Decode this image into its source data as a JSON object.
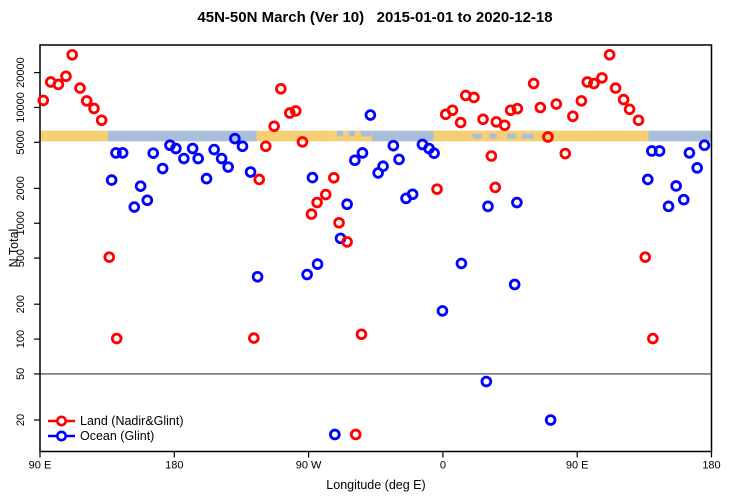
{
  "title": "45N-50N March (Ver 10)   2015-01-01 to 2020-12-18",
  "chart_data": {
    "type": "scatter",
    "title": "45N-50N March (Ver 10)   2015-01-01 to 2020-12-18",
    "xlabel": "Longitude (deg E)",
    "ylabel": "N Total",
    "x_axis": {
      "note": "longitude axis wraps eastward starting at 90E, spanning 450 degrees",
      "range_deg": [
        0,
        450
      ],
      "ticks": [
        {
          "pos": 0,
          "label": "90 E"
        },
        {
          "pos": 90,
          "label": "180"
        },
        {
          "pos": 180,
          "label": "90 W"
        },
        {
          "pos": 270,
          "label": "0"
        },
        {
          "pos": 360,
          "label": "90 E"
        },
        {
          "pos": 450,
          "label": "180"
        }
      ]
    },
    "y_axis": {
      "scale": "log",
      "range": [
        11,
        34000
      ],
      "ticks": [
        20,
        50,
        100,
        200,
        500,
        1000,
        2000,
        5000,
        10000,
        20000
      ]
    },
    "reference_line_n": 50,
    "coast_band": {
      "n_low": 5100,
      "n_high": 6300,
      "land_color": "#F6CE73",
      "ocean_color": "#A9BFD9",
      "segments": [
        {
          "type": "land",
          "from": 0,
          "to": 45.5
        },
        {
          "type": "ocean",
          "from": 45.5,
          "to": 145.3
        },
        {
          "type": "land",
          "from": 145.3,
          "to": 196.9
        },
        {
          "type": "mixed",
          "from": 196.9,
          "to": 222.3
        },
        {
          "type": "ocean",
          "from": 222.3,
          "to": 263.8
        },
        {
          "type": "land",
          "from": 263.8,
          "to": 407.8
        },
        {
          "type": "ocean",
          "from": 407.8,
          "to": 450
        }
      ],
      "mixed_ocean_chips": [
        {
          "from": 199,
          "to": 203
        },
        {
          "from": 207,
          "to": 211
        },
        {
          "from": 215,
          "to": 222
        }
      ],
      "inland_water_chips": [
        {
          "from": 290,
          "to": 296
        },
        {
          "from": 301,
          "to": 306
        },
        {
          "from": 313,
          "to": 319
        },
        {
          "from": 323,
          "to": 331
        }
      ]
    },
    "series": [
      {
        "name": "Land (Nadir&Glint)",
        "color": "#FF0000",
        "points": [
          [
            2.2,
            11500
          ],
          [
            7.2,
            16600
          ],
          [
            12.3,
            15800
          ],
          [
            17.4,
            18600
          ],
          [
            21.6,
            28500
          ],
          [
            26.8,
            14700
          ],
          [
            31.3,
            11400
          ],
          [
            36.2,
            9800
          ],
          [
            41.3,
            7750
          ],
          [
            46.4,
            510
          ],
          [
            51.4,
            101
          ],
          [
            143.3,
            102
          ],
          [
            146.9,
            2390
          ],
          [
            151.3,
            4620
          ],
          [
            156.9,
            6880
          ],
          [
            161.4,
            14500
          ],
          [
            167.4,
            8960
          ],
          [
            171.4,
            9330
          ],
          [
            175.9,
            5040
          ],
          [
            181.9,
            1200
          ],
          [
            185.7,
            1510
          ],
          [
            191.5,
            1770
          ],
          [
            196.9,
            2470
          ],
          [
            200.4,
            1010
          ],
          [
            205.8,
            690
          ],
          [
            211.6,
            15
          ],
          [
            215.4,
            110
          ],
          [
            266.1,
            1970
          ],
          [
            271.9,
            8730
          ],
          [
            276.4,
            9460
          ],
          [
            281.9,
            7400
          ],
          [
            285.3,
            12700
          ],
          [
            290.8,
            12200
          ],
          [
            296.9,
            7910
          ],
          [
            302.5,
            3810
          ],
          [
            305.1,
            2040
          ],
          [
            305.8,
            7500
          ],
          [
            311.4,
            7020
          ],
          [
            315.4,
            9460
          ],
          [
            319.9,
            9770
          ],
          [
            330.8,
            16100
          ],
          [
            335.3,
            9980
          ],
          [
            340.4,
            5560
          ],
          [
            346.0,
            10700
          ],
          [
            352.0,
            4000
          ],
          [
            357.1,
            8390
          ],
          [
            362.8,
            11400
          ],
          [
            366.8,
            16600
          ],
          [
            371.2,
            16100
          ],
          [
            376.6,
            18000
          ],
          [
            381.7,
            28500
          ],
          [
            385.7,
            14700
          ],
          [
            391.1,
            11700
          ],
          [
            395.1,
            9640
          ],
          [
            401.1,
            7750
          ],
          [
            405.6,
            510
          ],
          [
            410.7,
            101
          ]
        ]
      },
      {
        "name": "Ocean (Glint)",
        "color": "#0000FF",
        "points": [
          [
            48.0,
            2360
          ],
          [
            50.9,
            4050
          ],
          [
            55.4,
            4050
          ],
          [
            63.2,
            1380
          ],
          [
            67.4,
            2090
          ],
          [
            71.9,
            1580
          ],
          [
            75.9,
            4030
          ],
          [
            82.2,
            2970
          ],
          [
            87.1,
            4720
          ],
          [
            91.1,
            4420
          ],
          [
            96.4,
            3620
          ],
          [
            102.3,
            4420
          ],
          [
            106.0,
            3620
          ],
          [
            111.6,
            2430
          ],
          [
            116.7,
            4330
          ],
          [
            121.7,
            3620
          ],
          [
            126.1,
            3060
          ],
          [
            130.6,
            5380
          ],
          [
            135.7,
            4620
          ],
          [
            141.1,
            2770
          ],
          [
            145.8,
            345
          ],
          [
            179.0,
            361
          ],
          [
            182.6,
            2480
          ],
          [
            186.0,
            444
          ],
          [
            197.6,
            15
          ],
          [
            201.4,
            740
          ],
          [
            205.8,
            1460
          ],
          [
            211.0,
            3500
          ],
          [
            216.1,
            4050
          ],
          [
            221.4,
            8600
          ],
          [
            226.6,
            2720
          ],
          [
            229.9,
            3110
          ],
          [
            236.8,
            4680
          ],
          [
            240.6,
            3560
          ],
          [
            245.3,
            1640
          ],
          [
            249.7,
            1780
          ],
          [
            256.3,
            4790
          ],
          [
            260.7,
            4420
          ],
          [
            264.1,
            4030
          ],
          [
            269.7,
            175
          ],
          [
            282.4,
            450
          ],
          [
            299.1,
            43
          ],
          [
            300.2,
            1400
          ],
          [
            318.1,
            296
          ],
          [
            319.6,
            1510
          ],
          [
            342.2,
            20
          ],
          [
            407.3,
            2390
          ],
          [
            410.0,
            4210
          ],
          [
            415.2,
            4210
          ],
          [
            421.2,
            1400
          ],
          [
            426.3,
            2100
          ],
          [
            431.4,
            1600
          ],
          [
            435.2,
            4050
          ],
          [
            440.4,
            3010
          ],
          [
            445.3,
            4720
          ]
        ]
      }
    ],
    "legend_position": "bottom-left"
  }
}
